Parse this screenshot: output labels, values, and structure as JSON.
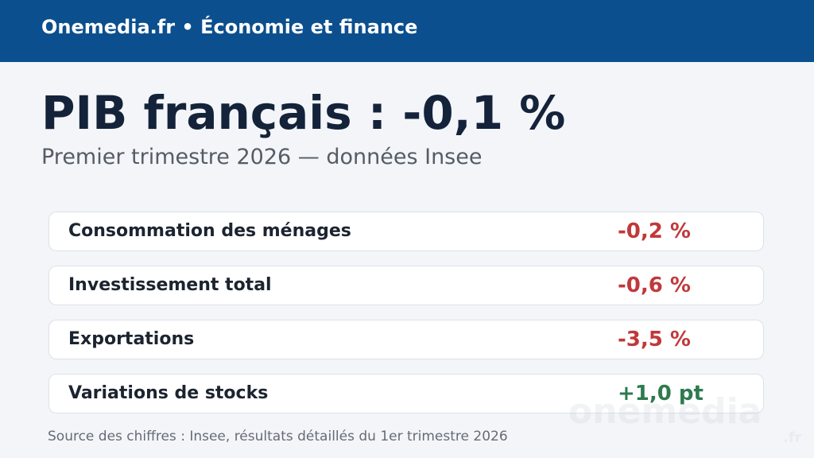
{
  "header": {
    "title": "Onemedia.fr • Économie et finance"
  },
  "headline": {
    "title": "PIB français : -0,1 %",
    "subtitle": "Premier trimestre 2026 — données Insee"
  },
  "rows": [
    {
      "label": "Consommation des ménages",
      "value": "-0,2 %",
      "trend": "negative"
    },
    {
      "label": "Investissement total",
      "value": "-0,6 %",
      "trend": "negative"
    },
    {
      "label": "Exportations",
      "value": "-3,5 %",
      "trend": "negative"
    },
    {
      "label": "Variations de stocks",
      "value": "+1,0 pt",
      "trend": "positive"
    }
  ],
  "source": "Source des chiffres : Insee, résultats détaillés du 1er trimestre 2026",
  "watermark": {
    "name": "onemedia",
    "suffix": ".fr"
  }
}
